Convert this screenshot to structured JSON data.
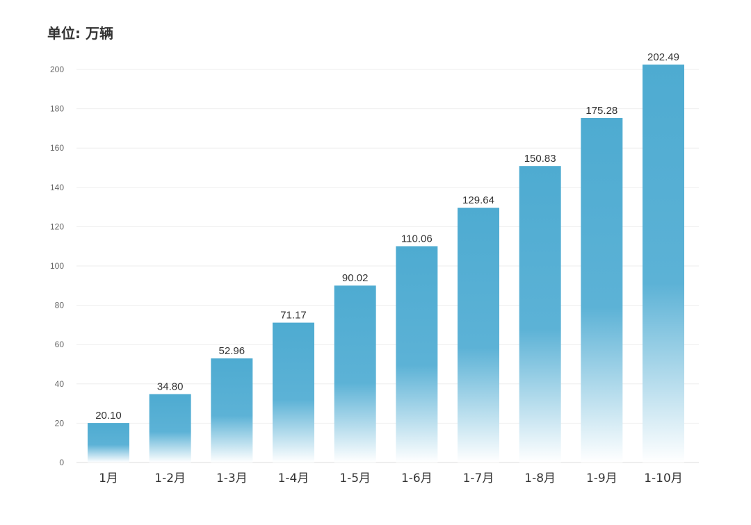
{
  "chart_data": {
    "type": "bar",
    "unit_label": "单位: 万辆",
    "categories": [
      "1月",
      "1-2月",
      "1-3月",
      "1-4月",
      "1-5月",
      "1-6月",
      "1-7月",
      "1-8月",
      "1-9月",
      "1-10月"
    ],
    "values": [
      20.1,
      34.8,
      52.96,
      71.17,
      90.02,
      110.06,
      129.64,
      150.83,
      175.28,
      202.49
    ],
    "value_labels": [
      "20.10",
      "34.80",
      "52.96",
      "71.17",
      "90.02",
      "110.06",
      "129.64",
      "150.83",
      "175.28",
      "202.49"
    ],
    "y_ticks": [
      0,
      20,
      40,
      60,
      80,
      100,
      120,
      140,
      160,
      180,
      200
    ],
    "ylim": [
      0,
      200
    ],
    "grid": true,
    "legend": "none",
    "bar_color_top": "#4EABD1",
    "bar_color_bottom": "#FFFFFF"
  }
}
